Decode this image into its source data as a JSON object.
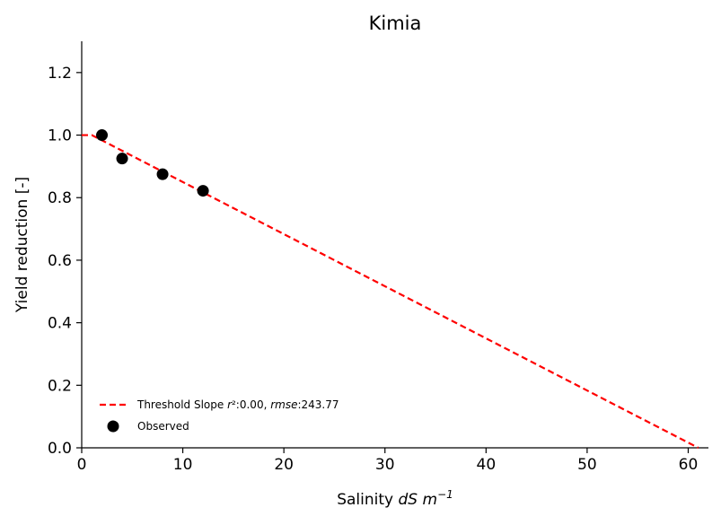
{
  "chart_data": {
    "type": "scatter",
    "title": "Kimia",
    "xlabel": "Salinity dS m⁻¹",
    "xlabel_parts": {
      "main": "Salinity ",
      "italic": "dS m",
      "sup": "−1"
    },
    "ylabel": "Yield reduction [-]",
    "xlim": [
      0,
      62
    ],
    "ylim": [
      0,
      1.3
    ],
    "xticks": [
      0,
      10,
      20,
      30,
      40,
      50,
      60
    ],
    "yticks": [
      0.0,
      0.2,
      0.4,
      0.6,
      0.8,
      1.0,
      1.2
    ],
    "xtick_labels": [
      "0",
      "10",
      "20",
      "30",
      "40",
      "50",
      "60"
    ],
    "ytick_labels": [
      "0.0",
      "0.2",
      "0.4",
      "0.6",
      "0.8",
      "1.0",
      "1.2"
    ],
    "grid": false,
    "legend_position": "bottom-left",
    "series": [
      {
        "name": "Threshold Slope r²:0.00, rmse:243.77",
        "legend_parts": {
          "prefix": "Threshold Slope ",
          "r": "r",
          "r_rest": "²:0.00, ",
          "rmse": "rmse",
          "rmse_rest": ":243.77"
        },
        "kind": "line",
        "style": "dashed",
        "color": "#ff0000",
        "x": [
          0,
          1,
          61
        ],
        "y": [
          1.0,
          1.0,
          0.0
        ]
      },
      {
        "name": "Observed",
        "kind": "scatter",
        "color": "#000000",
        "x": [
          2,
          4,
          8,
          12
        ],
        "y": [
          1.0,
          0.925,
          0.875,
          0.822
        ]
      }
    ]
  }
}
